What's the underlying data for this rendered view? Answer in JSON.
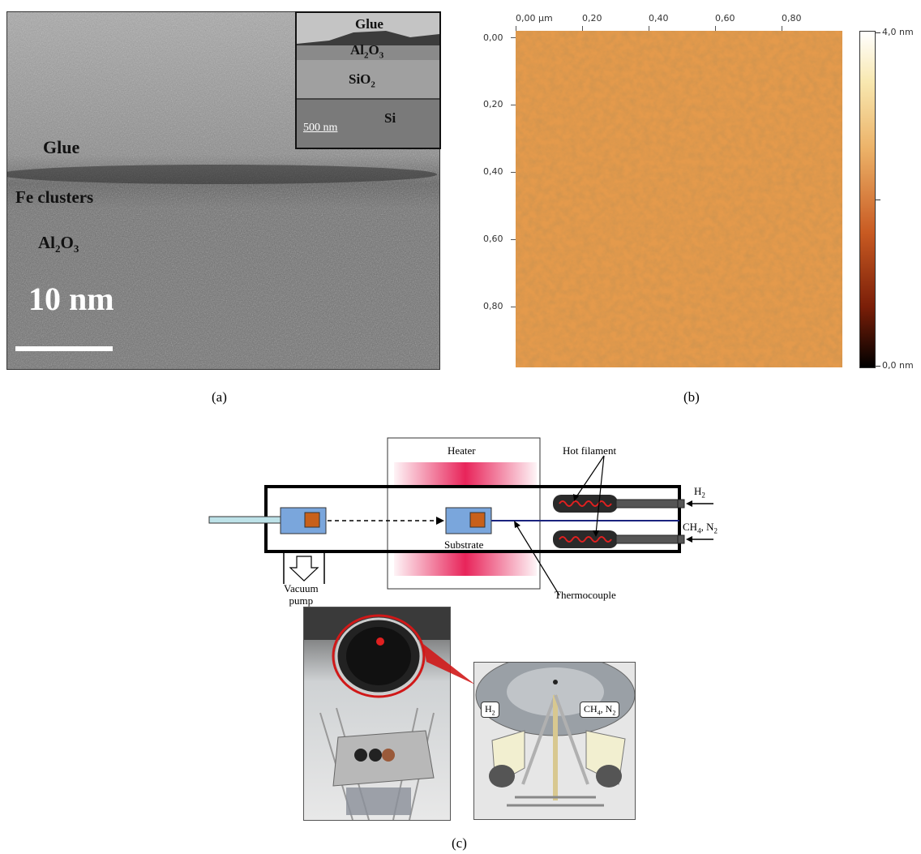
{
  "panel_a": {
    "labels": {
      "glue": "Glue",
      "fe_clusters": "Fe clusters",
      "al2o3_base": "Al",
      "al2o3_sub2": "2",
      "al2o3_mid": "O",
      "al2o3_sub3": "3",
      "scale": "10 nm"
    },
    "inset": {
      "glue": "Glue",
      "al2o3_base": "Al",
      "al2o3_sub2": "2",
      "al2o3_mid": "O",
      "al2o3_sub3": "3",
      "sio2_base": "SiO",
      "sio2_sub": "2",
      "si": "Si",
      "scale": "500 nm"
    },
    "caption": "(a)"
  },
  "panel_b": {
    "x_ticks": [
      "0,00 µm",
      "0,20",
      "0,40",
      "0,60",
      "0,80"
    ],
    "y_ticks": [
      "0,00",
      "0,20",
      "0,40",
      "0,60",
      "0,80"
    ],
    "colorbar": {
      "max": "4,0 nm",
      "min": "0,0 nm"
    },
    "colors": {
      "dark": "#b5622c",
      "light": "#e8a64e"
    },
    "caption": "(b)"
  },
  "panel_c": {
    "labels": {
      "heater": "Heater",
      "hot_filament": "Hot filament",
      "h2_base": "H",
      "h2_sub": "2",
      "ch4_base": "CH",
      "ch4_sub": "4",
      "ch4_rest": ", N",
      "n2_sub": "2",
      "substrate": "Substrate",
      "thermocouple": "Thermocouple",
      "vacuum_line1": "Vacuum",
      "vacuum_line2": "pump"
    },
    "photo_labels": {
      "h2_base": "H",
      "h2_sub": "2",
      "ch4_base": "CH",
      "ch4_sub": "4",
      "ch4_rest": ", N",
      "n2_sub": "2"
    },
    "colors": {
      "heater": "#e8245a",
      "sample": "#c8601a",
      "holder": "#7aa6dc",
      "filament": "#e02020",
      "thermocouple": "#1a237e"
    },
    "caption": "(c)"
  }
}
